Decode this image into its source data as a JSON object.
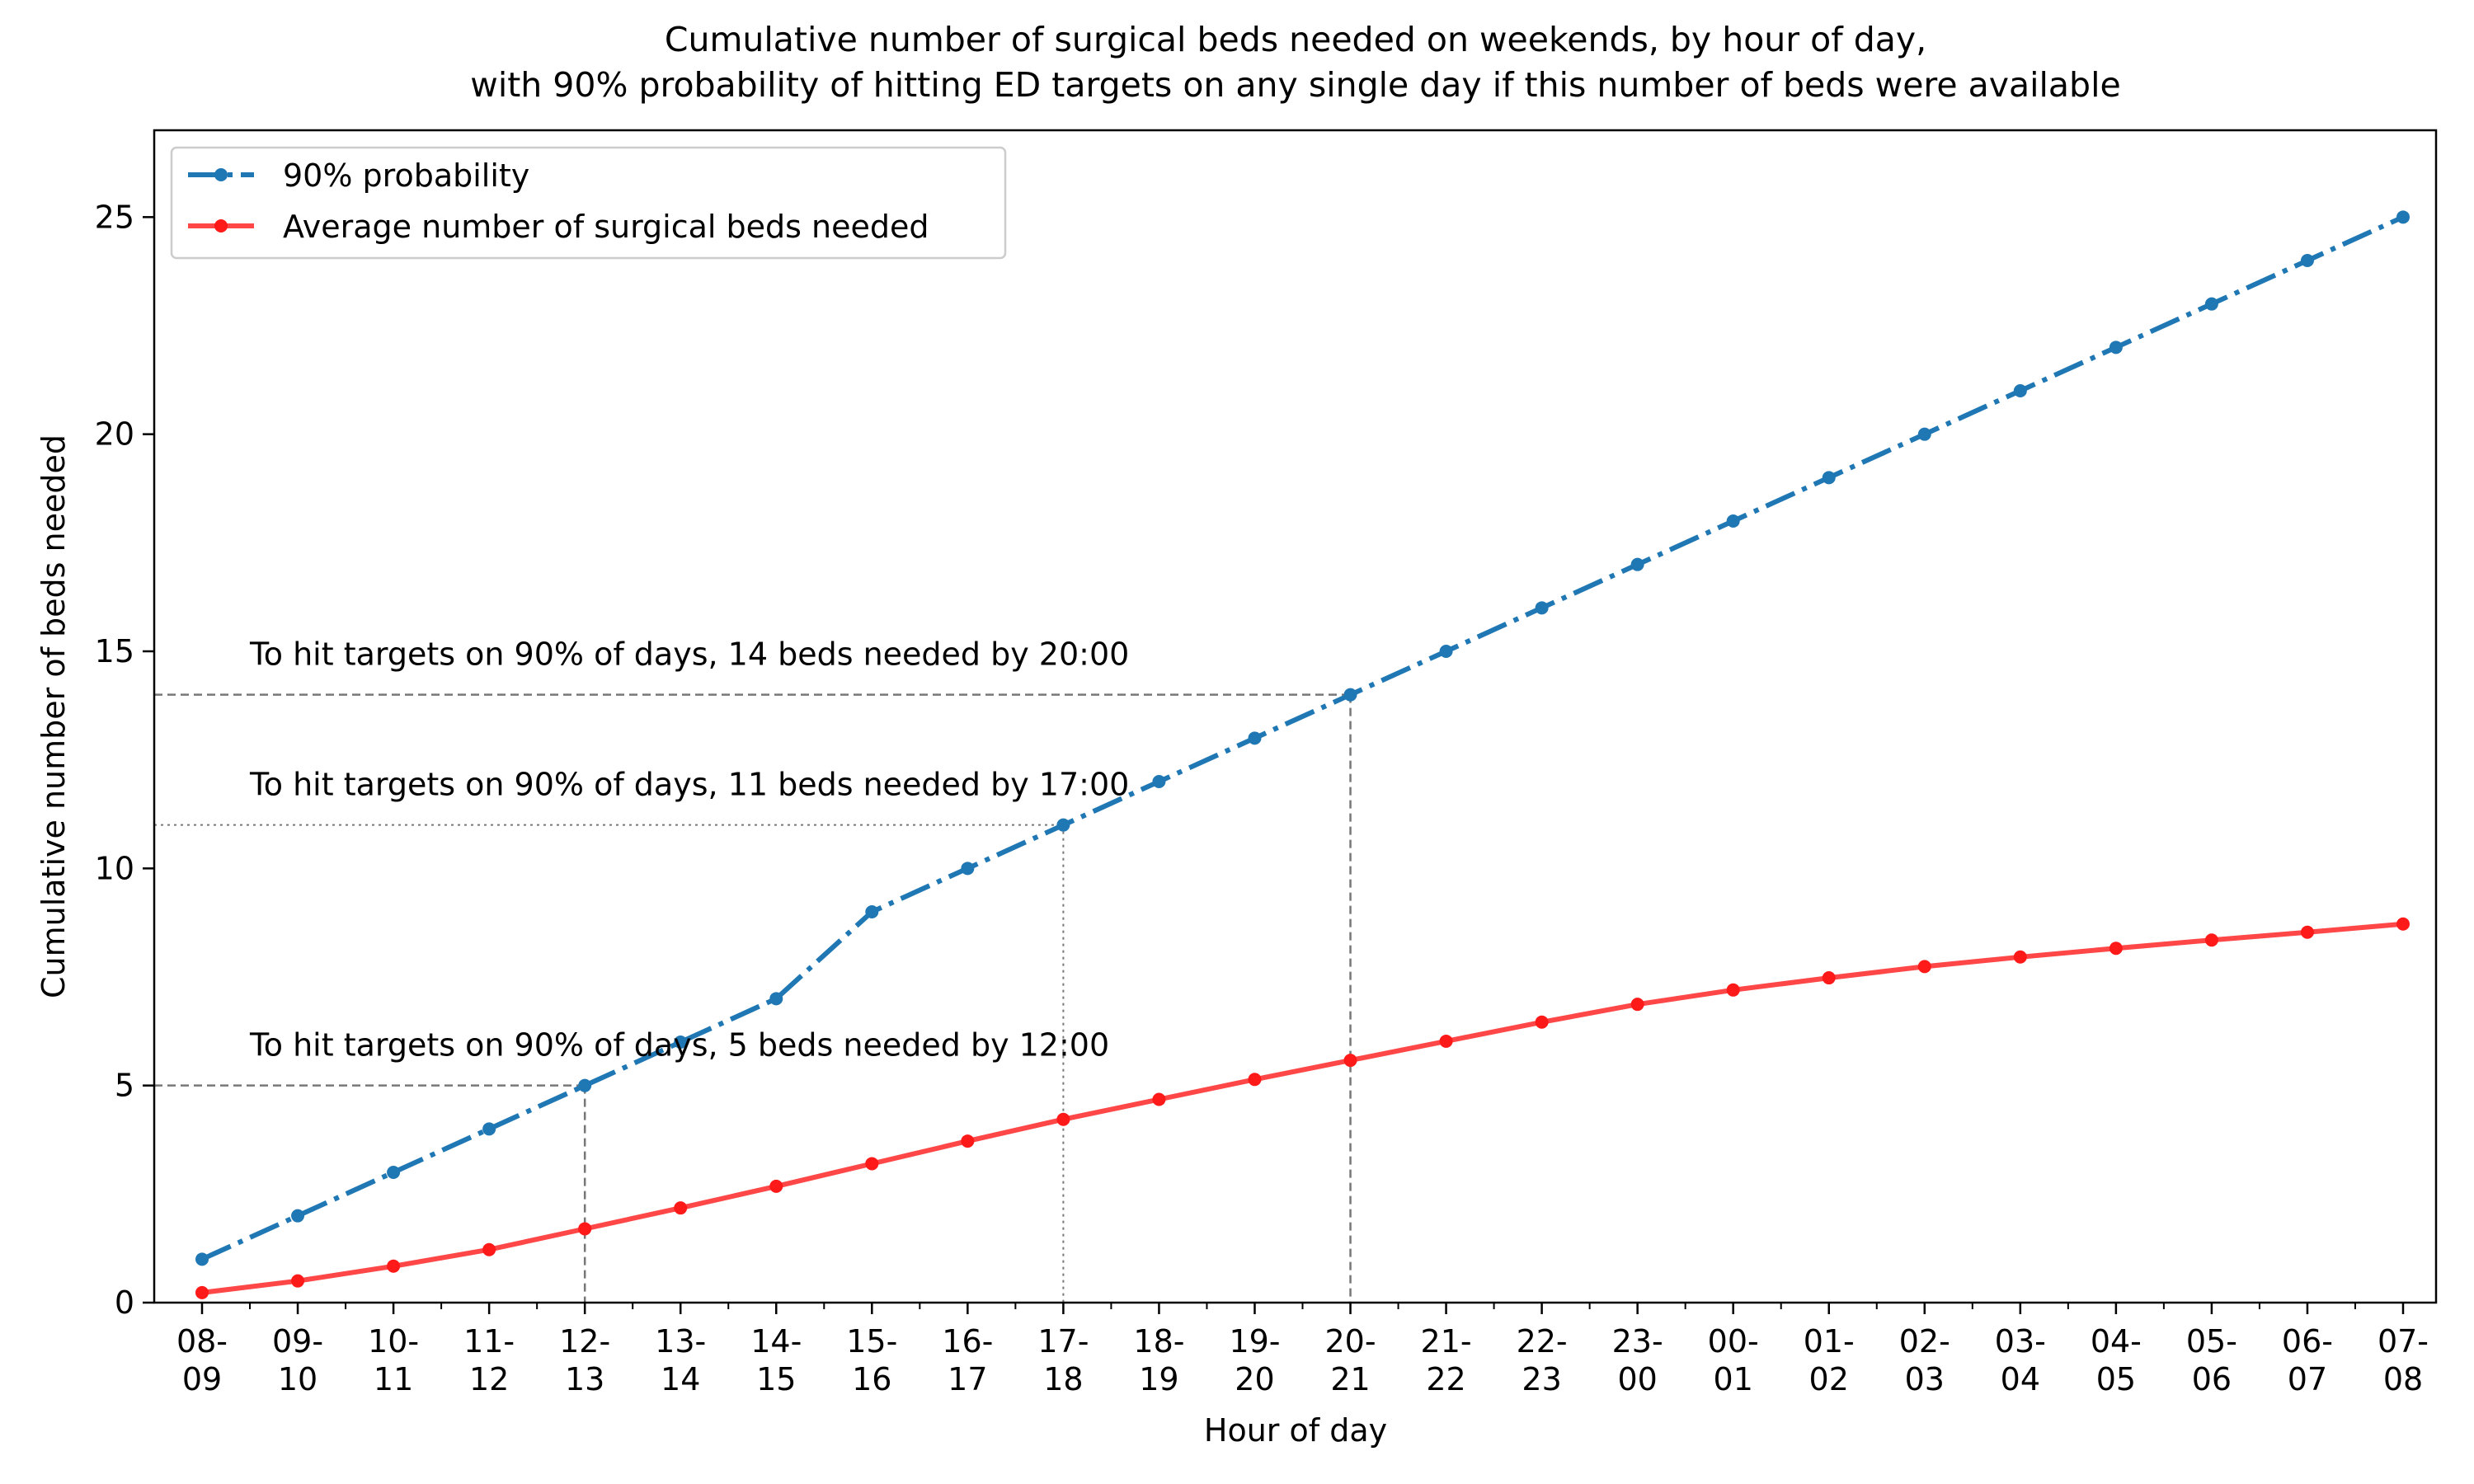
{
  "chart_data": {
    "type": "line",
    "title_line1": "Cumulative number of surgical beds needed on weekends, by hour of day,",
    "title_line2": "with 90% probability of hitting ED targets on any single day if this number of beds were available",
    "xlabel": "Hour of day",
    "ylabel": "Cumulative number of beds needed",
    "ylim": [
      0,
      27
    ],
    "yticks": [
      0,
      5,
      10,
      15,
      20,
      25
    ],
    "grid": false,
    "legend_position": "top-left",
    "categories": [
      "08-\n09",
      "09-\n10",
      "10-\n11",
      "11-\n12",
      "12-\n13",
      "13-\n14",
      "14-\n15",
      "15-\n16",
      "16-\n17",
      "17-\n18",
      "18-\n19",
      "19-\n20",
      "20-\n21",
      "21-\n22",
      "22-\n23",
      "23-\n00",
      "00-\n01",
      "01-\n02",
      "02-\n03",
      "03-\n04",
      "04-\n05",
      "05-\n06",
      "06-\n07",
      "07-\n08"
    ],
    "series": [
      {
        "name": "90% probability",
        "color": "#1f77b4",
        "style": "dash-dot",
        "values": [
          1,
          2,
          3,
          4,
          5,
          6,
          7,
          9,
          10,
          11,
          12,
          13,
          14,
          15,
          16,
          17,
          18,
          19,
          20,
          21,
          22,
          23,
          24,
          25
        ]
      },
      {
        "name": "Average number of surgical beds needed",
        "color": "#ff3333",
        "style": "solid",
        "values": [
          0.23,
          0.5,
          0.84,
          1.22,
          1.7,
          2.18,
          2.68,
          3.2,
          3.72,
          4.22,
          4.68,
          5.14,
          5.58,
          6.02,
          6.46,
          6.87,
          7.2,
          7.48,
          7.74,
          7.96,
          8.16,
          8.35,
          8.53,
          8.72
        ]
      }
    ],
    "annotations": [
      {
        "text": "To hit targets on 90% of days, 14 beds needed by 20:00",
        "x_index": 12,
        "y": 14,
        "line": "dashed"
      },
      {
        "text": "To hit targets on 90% of days, 11 beds needed by 17:00",
        "x_index": 9,
        "y": 11,
        "line": "dotted"
      },
      {
        "text": "To hit targets on 90% of days, 5 beds needed by 12:00",
        "x_index": 4,
        "y": 5,
        "line": "dashed"
      }
    ]
  }
}
